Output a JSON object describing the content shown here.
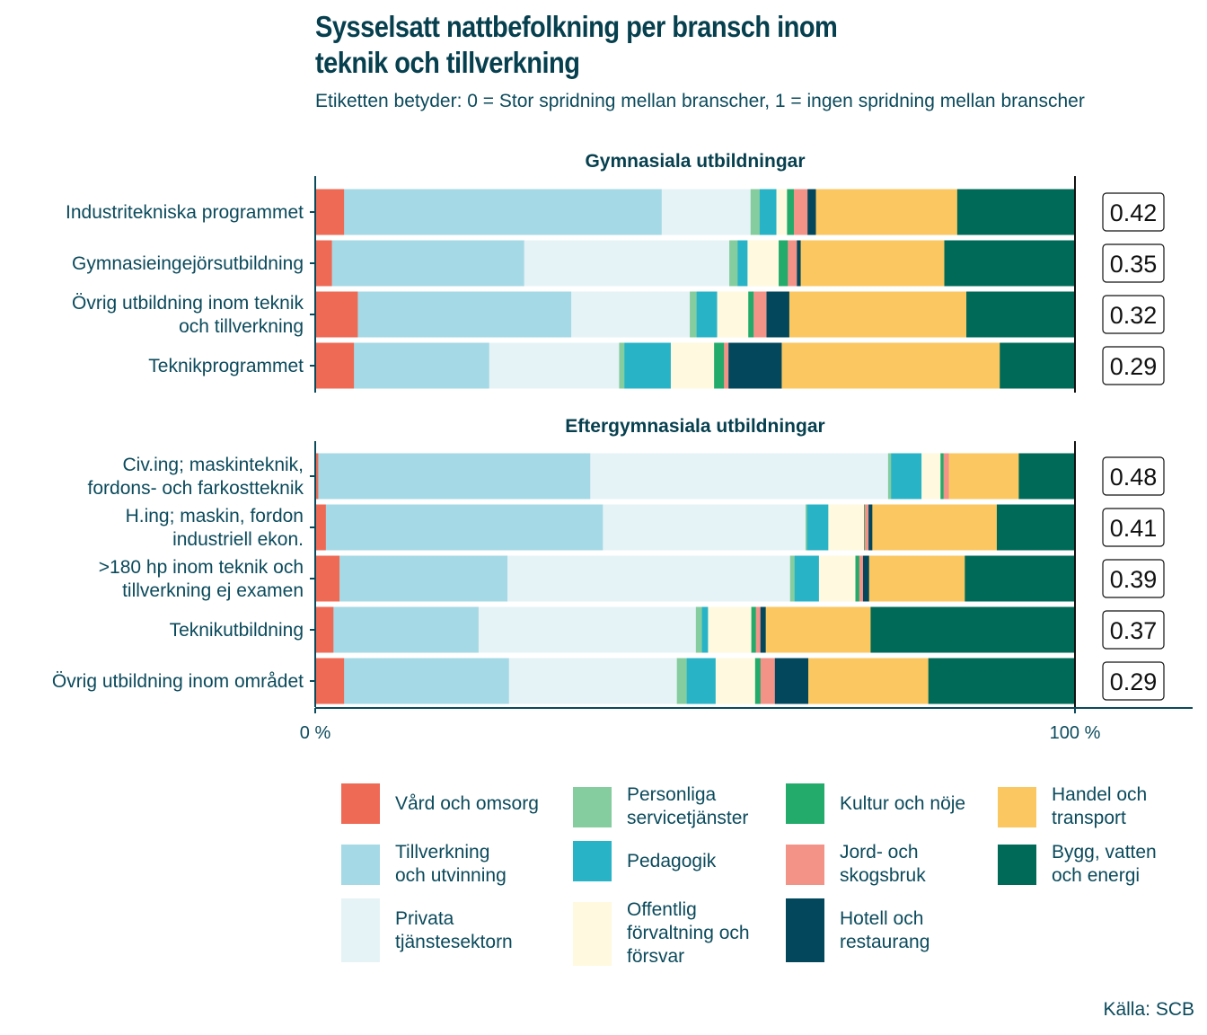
{
  "title_lines": [
    "Sysselsatt nattbefolkning per bransch inom",
    "teknik och tillverkning"
  ],
  "subtitle": "Etiketten betyder: 0 = Stor spridning mellan branscher, 1 = ingen spridning mellan branscher",
  "source": "Källa: SCB",
  "chart_data": {
    "type": "bar",
    "orientation": "horizontal",
    "stacked": "percent",
    "title": "Sysselsatt nattbefolkning per bransch inom teknik och tillverkning",
    "subtitle": "Etiketten betyder: 0 = Stor spridning mellan branscher, 1 = ingen spridning mellan branscher",
    "xlabel": "",
    "ylabel": "",
    "xlim": [
      0,
      100
    ],
    "x_ticks": [
      "0 %",
      "100 %"
    ],
    "grid": false,
    "legend_position": "bottom",
    "series_names": [
      "Vård och omsorg",
      "Tillverkning och utvinning",
      "Privata tjänstesektorn",
      "Personliga servicetjänster",
      "Pedagogik",
      "Offentlig förvaltning och försvar",
      "Kultur och nöje",
      "Jord- och skogsbruk",
      "Hotell och restaurang",
      "Handel och transport",
      "Bygg, vatten och energi"
    ],
    "series_colors": [
      "#ee6a55",
      "#a5d9e5",
      "#e5f3f7",
      "#85cd9e",
      "#28b3c7",
      "#fef9df",
      "#22ab6b",
      "#f39388",
      "#03475d",
      "#fbc761",
      "#006a58"
    ],
    "panels": [
      {
        "title": "Gymnasiala utbildningar",
        "rows": [
          {
            "label": "Industritekniska programmet",
            "index": "0.42",
            "values": [
              3.8,
              41.8,
              11.7,
              1.2,
              2.2,
              1.4,
              0.9,
              1.8,
              1.1,
              18.6,
              15.5
            ]
          },
          {
            "label": "Gymnasieingejörsutbildning",
            "index": "0.35",
            "values": [
              2.2,
              25.3,
              27.0,
              1.1,
              1.3,
              4.1,
              1.2,
              1.2,
              0.5,
              18.9,
              17.2
            ]
          },
          {
            "label": "Övrig utbildning inom teknik\noch tillverkning",
            "index": "0.32",
            "values": [
              5.6,
              28.1,
              15.6,
              0.9,
              2.7,
              4.1,
              0.7,
              1.7,
              3.0,
              23.3,
              14.3
            ]
          },
          {
            "label": "Teknikprogrammet",
            "index": "0.29",
            "values": [
              5.1,
              17.8,
              17.1,
              0.7,
              6.1,
              5.7,
              1.3,
              0.6,
              7.0,
              28.7,
              9.9
            ]
          }
        ]
      },
      {
        "title": "Eftergymnasiala utbildningar",
        "rows": [
          {
            "label": "Civ.ing; maskinteknik,\nfordons- och farkostteknik",
            "index": "0.48",
            "values": [
              0.4,
              35.8,
              39.2,
              0.4,
              4.0,
              2.5,
              0.4,
              0.7,
              0.0,
              9.2,
              7.4
            ]
          },
          {
            "label": "H.ing; maskin, fordon\nindustriell ekon.",
            "index": "0.41",
            "values": [
              1.4,
              36.5,
              26.7,
              0.2,
              2.8,
              4.7,
              0.1,
              0.5,
              0.5,
              16.4,
              10.3
            ]
          },
          {
            "label": ">180 hp inom teknik och\ntillverkning ej examen",
            "index": "0.39",
            "values": [
              3.2,
              22.1,
              37.2,
              0.6,
              3.2,
              4.8,
              0.5,
              0.5,
              0.8,
              12.6,
              14.5
            ]
          },
          {
            "label": "Teknikutbildning",
            "index": "0.37",
            "values": [
              2.4,
              19.1,
              28.6,
              0.8,
              0.8,
              5.7,
              0.6,
              0.6,
              0.7,
              13.8,
              26.9
            ]
          },
          {
            "label": "Övrig utbildning inom området",
            "index": "0.29",
            "values": [
              3.8,
              21.7,
              22.1,
              1.3,
              3.8,
              5.2,
              0.7,
              1.9,
              4.4,
              15.8,
              19.3
            ]
          }
        ]
      }
    ]
  },
  "legend": [
    {
      "label": "Vård och omsorg",
      "color": "#ee6a55"
    },
    {
      "label": "Personliga\nservicetjänster",
      "color": "#85cd9e"
    },
    {
      "label": "Kultur och nöje",
      "color": "#22ab6b"
    },
    {
      "label": "Handel och\ntransport",
      "color": "#fbc761"
    },
    {
      "label": "Tillverkning\noch utvinning",
      "color": "#a5d9e5"
    },
    {
      "label": "Pedagogik",
      "color": "#28b3c7"
    },
    {
      "label": "Jord- och\nskogsbruk",
      "color": "#f39388"
    },
    {
      "label": "Bygg, vatten\noch energi",
      "color": "#006a58"
    },
    {
      "label": "Privata\ntjänstesektorn",
      "color": "#e5f3f7"
    },
    {
      "label": "Offentlig\nförvaltning och\nförsvar",
      "color": "#fef9df"
    },
    {
      "label": "Hotell och\nrestaurang",
      "color": "#03475d"
    }
  ]
}
